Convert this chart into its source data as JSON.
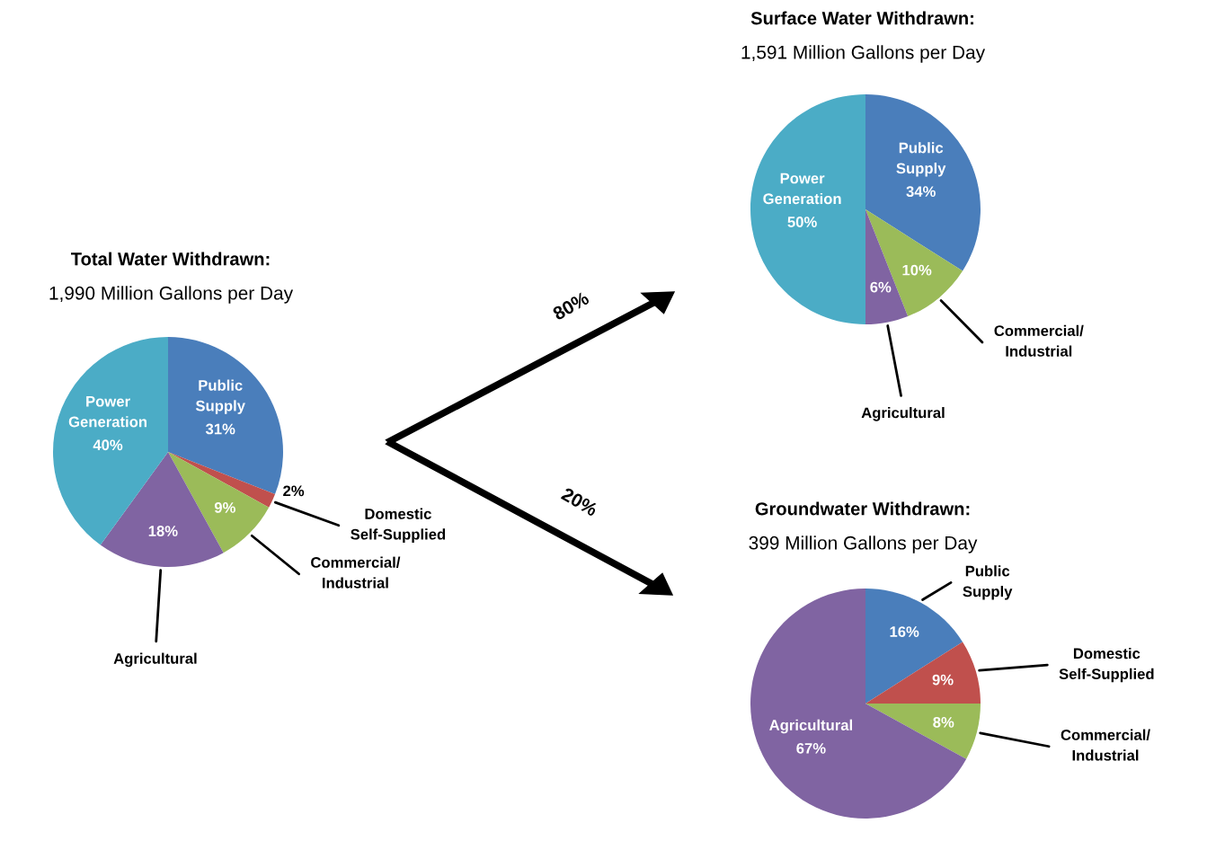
{
  "chart_data": [
    {
      "type": "pie",
      "title": "Total Water Withdrawn:",
      "subtitle": "1,990 Million Gallons per Day",
      "categories": [
        "Public\nSupply",
        "Domestic\nSelf-Supplied",
        "Commercial/\nIndustrial",
        "Agricultural",
        "Power\nGeneration"
      ],
      "values": [
        31,
        2,
        9,
        18,
        40
      ],
      "value_labels": [
        "31%",
        "2%",
        "9%",
        "18%",
        "40%"
      ],
      "colors": [
        "#4a7ebb",
        "#c0504d",
        "#9bbb59",
        "#8064a2",
        "#4bacc6"
      ],
      "annotations": [
        "80%",
        "20%"
      ]
    },
    {
      "type": "pie",
      "title": "Surface Water Withdrawn:",
      "subtitle": "1,591 Million Gallons per Day",
      "categories": [
        "Public\nSupply",
        "Commercial/\nIndustrial",
        "Agricultural",
        "Power\nGeneration"
      ],
      "values": [
        34,
        10,
        6,
        50
      ],
      "value_labels": [
        "34%",
        "10%",
        "6%",
        "50%"
      ],
      "colors": [
        "#4a7ebb",
        "#9bbb59",
        "#8064a2",
        "#4bacc6"
      ]
    },
    {
      "type": "pie",
      "title": "Groundwater Withdrawn:",
      "subtitle": "399 Million Gallons per Day",
      "categories": [
        "Public\nSupply",
        "Domestic\nSelf-Supplied",
        "Commercial/\nIndustrial",
        "Agricultural"
      ],
      "values": [
        16,
        9,
        8,
        67
      ],
      "value_labels": [
        "16%",
        "9%",
        "8%",
        "67%"
      ],
      "colors": [
        "#4a7ebb",
        "#c0504d",
        "#9bbb59",
        "#8064a2"
      ]
    }
  ]
}
